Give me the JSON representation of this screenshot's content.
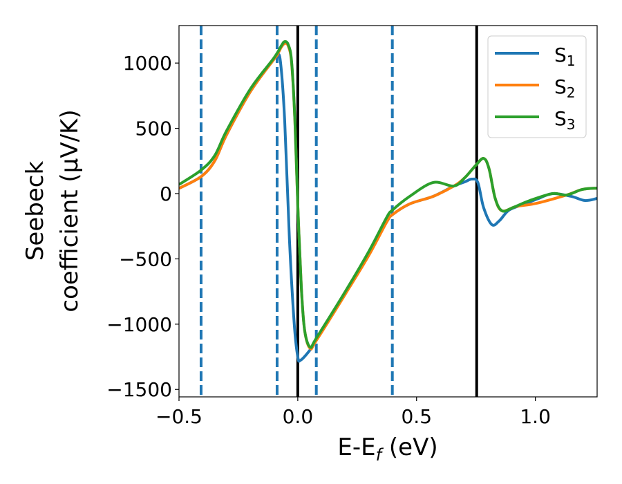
{
  "chart_data": {
    "type": "line",
    "xlabel": "E-E",
    "xlabel_sub": "f",
    "xlabel_unit": " (eV)",
    "ylabel_line1": "Seebeck",
    "ylabel_line2": "coefficient  (μV/K)",
    "xlim": [
      -0.5,
      1.26
    ],
    "ylim": [
      -1557,
      1287
    ],
    "xticks": [
      -0.5,
      0.0,
      0.5,
      1.0
    ],
    "xtick_labels": [
      "−0.5",
      "0.0",
      "0.5",
      "1.0"
    ],
    "yticks": [
      1000,
      500,
      0,
      -500,
      -1000,
      -1500
    ],
    "ytick_labels": [
      "1000",
      "500",
      "0",
      "−500",
      "−1000",
      "−1500"
    ],
    "grid": false,
    "legend_placement": "top-right",
    "vlines_dashed": {
      "x": [
        -0.407,
        -0.087,
        0.078,
        0.398
      ],
      "color": "#1f77b4"
    },
    "vlines_solid": {
      "x": [
        0.0,
        0.753
      ],
      "color": "#000000"
    },
    "series": [
      {
        "name": "S",
        "sub": "1",
        "color": "#1f77b4",
        "points": [
          [
            -0.5,
            40
          ],
          [
            -0.407,
            130
          ],
          [
            -0.35,
            250
          ],
          [
            -0.3,
            450
          ],
          [
            -0.2,
            780
          ],
          [
            -0.1,
            1030
          ],
          [
            -0.087,
            1060
          ],
          [
            -0.073,
            1012
          ],
          [
            -0.055,
            556
          ],
          [
            -0.035,
            -355
          ],
          [
            -0.015,
            -996
          ],
          [
            0.0,
            -1250
          ],
          [
            0.012,
            -1276
          ],
          [
            0.052,
            -1197
          ],
          [
            0.078,
            -1123
          ],
          [
            0.2,
            -760
          ],
          [
            0.3,
            -450
          ],
          [
            0.375,
            -215
          ],
          [
            0.398,
            -162
          ],
          [
            0.471,
            -79
          ],
          [
            0.57,
            -21
          ],
          [
            0.657,
            58
          ],
          [
            0.703,
            90
          ],
          [
            0.733,
            111
          ],
          [
            0.758,
            85
          ],
          [
            0.782,
            -106
          ],
          [
            0.817,
            -238
          ],
          [
            0.849,
            -207
          ],
          [
            0.889,
            -127
          ],
          [
            0.956,
            -79
          ],
          [
            1.01,
            -40
          ],
          [
            1.073,
            0
          ],
          [
            1.151,
            -21
          ],
          [
            1.209,
            -53
          ],
          [
            1.26,
            -37
          ]
        ]
      },
      {
        "name": "S",
        "sub": "2",
        "color": "#ff7f0e",
        "points": [
          [
            -0.5,
            40
          ],
          [
            -0.407,
            130
          ],
          [
            -0.35,
            250
          ],
          [
            -0.3,
            450
          ],
          [
            -0.2,
            780
          ],
          [
            -0.1,
            1030
          ],
          [
            -0.087,
            1060
          ],
          [
            -0.07,
            1120
          ],
          [
            -0.055,
            1150
          ],
          [
            -0.04,
            1130
          ],
          [
            -0.026,
            1000
          ],
          [
            -0.012,
            556
          ],
          [
            0.0,
            -85
          ],
          [
            0.015,
            -720
          ],
          [
            0.029,
            -1049
          ],
          [
            0.052,
            -1185
          ],
          [
            0.078,
            -1125
          ],
          [
            0.2,
            -770
          ],
          [
            0.3,
            -470
          ],
          [
            0.375,
            -215
          ],
          [
            0.398,
            -162
          ],
          [
            0.471,
            -79
          ],
          [
            0.57,
            -21
          ],
          [
            0.657,
            58
          ],
          [
            0.703,
            122
          ],
          [
            0.747,
            212
          ],
          [
            0.782,
            270
          ],
          [
            0.805,
            191
          ],
          [
            0.831,
            -37
          ],
          [
            0.86,
            -132
          ],
          [
            0.919,
            -99
          ],
          [
            1.006,
            -74
          ],
          [
            1.131,
            -11
          ],
          [
            1.198,
            32
          ],
          [
            1.26,
            42
          ]
        ]
      },
      {
        "name": "S",
        "sub": "3",
        "color": "#2ca02c",
        "points": [
          [
            -0.5,
            69
          ],
          [
            -0.407,
            180
          ],
          [
            -0.35,
            290
          ],
          [
            -0.3,
            480
          ],
          [
            -0.2,
            800
          ],
          [
            -0.1,
            1040
          ],
          [
            -0.07,
            1130
          ],
          [
            -0.055,
            1165
          ],
          [
            -0.04,
            1140
          ],
          [
            -0.026,
            1012
          ],
          [
            -0.012,
            556
          ],
          [
            0.0,
            -85
          ],
          [
            0.015,
            -720
          ],
          [
            0.029,
            -1049
          ],
          [
            0.052,
            -1176
          ],
          [
            0.078,
            -1107
          ],
          [
            0.2,
            -750
          ],
          [
            0.3,
            -440
          ],
          [
            0.375,
            -180
          ],
          [
            0.398,
            -127
          ],
          [
            0.471,
            -21
          ],
          [
            0.57,
            85
          ],
          [
            0.657,
            58
          ],
          [
            0.703,
            122
          ],
          [
            0.747,
            212
          ],
          [
            0.782,
            270
          ],
          [
            0.805,
            191
          ],
          [
            0.831,
            -37
          ],
          [
            0.86,
            -132
          ],
          [
            0.907,
            -106
          ],
          [
            0.977,
            -53
          ],
          [
            1.073,
            0
          ],
          [
            1.131,
            -11
          ],
          [
            1.198,
            32
          ],
          [
            1.26,
            42
          ]
        ]
      }
    ]
  }
}
